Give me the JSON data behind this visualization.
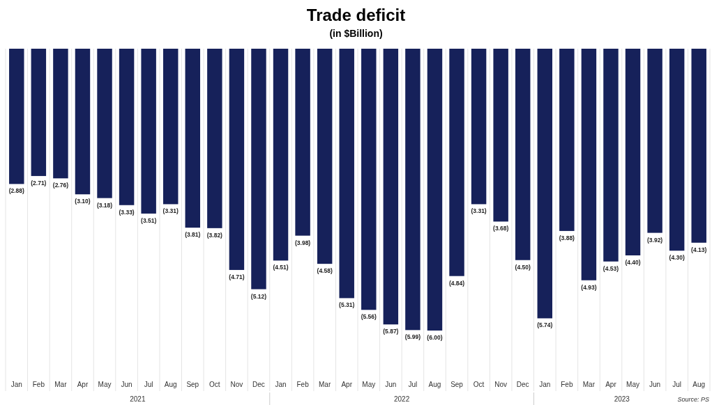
{
  "chart_data": {
    "type": "bar",
    "title": "Trade deficit",
    "subtitle": "(in $Billion)",
    "categories": [
      "Jan",
      "Feb",
      "Mar",
      "Apr",
      "May",
      "Jun",
      "Jul",
      "Aug",
      "Sep",
      "Oct",
      "Nov",
      "Dec",
      "Jan",
      "Feb",
      "Mar",
      "Apr",
      "May",
      "Jun",
      "Jul",
      "Aug",
      "Sep",
      "Oct",
      "Nov",
      "Dec",
      "Jan",
      "Feb",
      "Mar",
      "Apr",
      "May",
      "Jun",
      "Jul",
      "Aug"
    ],
    "values": [
      -2.88,
      -2.71,
      -2.76,
      -3.1,
      -3.18,
      -3.33,
      -3.51,
      -3.31,
      -3.81,
      -3.82,
      -4.71,
      -5.12,
      -4.51,
      -3.98,
      -4.58,
      -5.31,
      -5.56,
      -5.87,
      -5.99,
      -6.0,
      -4.84,
      -3.31,
      -3.68,
      -4.5,
      -5.74,
      -3.88,
      -4.93,
      -4.53,
      -4.4,
      -3.92,
      -4.3,
      -4.13
    ],
    "value_labels": [
      "(2.88)",
      "(2.71)",
      "(2.76)",
      "(3.10)",
      "(3.18)",
      "(3.33)",
      "(3.51)",
      "(3.31)",
      "(3.81)",
      "(3.82)",
      "(4.71)",
      "(5.12)",
      "(4.51)",
      "(3.98)",
      "(4.58)",
      "(5.31)",
      "(5.56)",
      "(5.87)",
      "(5.99)",
      "(6.00)",
      "(4.84)",
      "(3.31)",
      "(3.68)",
      "(4.50)",
      "(5.74)",
      "(3.88)",
      "(4.93)",
      "(4.53)",
      "(4.40)",
      "(3.92)",
      "(4.30)",
      "(4.13)"
    ],
    "color": "#16215a",
    "tick_labels": "x",
    "grid": "x",
    "annotations": [
      "2021",
      "2022",
      "2023",
      "Source: PS"
    ]
  }
}
